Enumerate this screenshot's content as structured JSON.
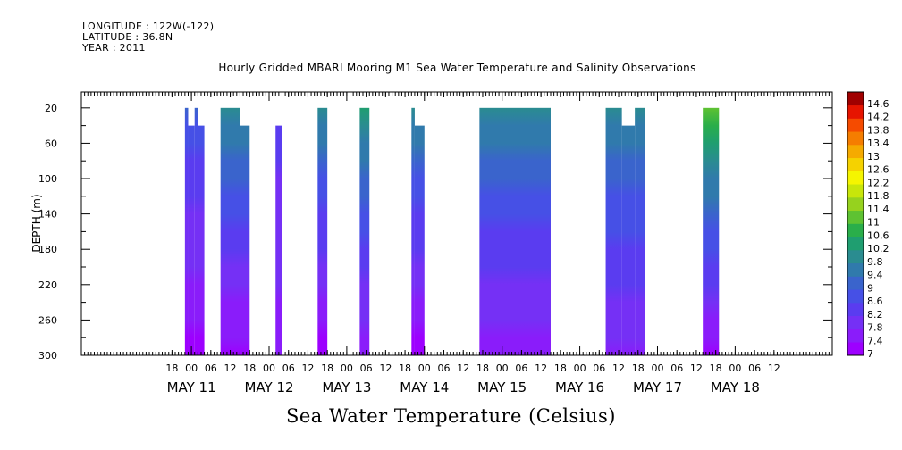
{
  "meta": {
    "longitude": "LONGITUDE : 122W(-122)",
    "latitude": "LATITUDE : 36.8N",
    "year": "YEAR : 2011"
  },
  "chart_data": {
    "type": "heatmap",
    "title": "Hourly Gridded MBARI Mooring M1 Sea Water Temperature and Salinity Observations",
    "xlabel": "Sea Water Temperature (Celsius)",
    "ylabel": "DEPTH (m)",
    "x_unit": "hours since MAY 11 00:00, 2011",
    "xlim": [
      -34,
      198
    ],
    "ylim": [
      300,
      2
    ],
    "y_ticks": [
      20,
      60,
      100,
      140,
      180,
      220,
      260,
      300
    ],
    "hour_tick_labels": [
      "18",
      "00",
      "06",
      "12",
      "18",
      "00",
      "06",
      "12",
      "18",
      "00",
      "06",
      "12",
      "18",
      "00",
      "06",
      "12",
      "18",
      "00",
      "06",
      "12",
      "18",
      "00",
      "06",
      "12",
      "18",
      "00",
      "06",
      "12",
      "18",
      "00",
      "06",
      "12"
    ],
    "hour_tick_values": [
      -6,
      0,
      6,
      12,
      18,
      24,
      30,
      36,
      42,
      48,
      54,
      60,
      66,
      72,
      78,
      84,
      90,
      96,
      102,
      108,
      114,
      120,
      126,
      132,
      138,
      144,
      150,
      156,
      162,
      168,
      174,
      180
    ],
    "day_labels": [
      {
        "text": "MAY 11",
        "hour": 0
      },
      {
        "text": "MAY 12",
        "hour": 24
      },
      {
        "text": "MAY 13",
        "hour": 48
      },
      {
        "text": "MAY 14",
        "hour": 72
      },
      {
        "text": "MAY 15",
        "hour": 96
      },
      {
        "text": "MAY 16",
        "hour": 120
      },
      {
        "text": "MAY 17",
        "hour": 144
      },
      {
        "text": "MAY 18",
        "hour": 168
      }
    ],
    "colorbar": {
      "levels": [
        7,
        7.4,
        7.8,
        8.2,
        8.6,
        9,
        9.4,
        9.8,
        10.2,
        10.6,
        11,
        11.4,
        11.8,
        12.2,
        12.6,
        13,
        13.4,
        13.8,
        14.2,
        14.6
      ],
      "labels": [
        "7",
        "7.4",
        "7.8",
        "8.2",
        "8.6",
        "9",
        "9.4",
        "9.8",
        "10.2",
        "10.6",
        "11",
        "11.4",
        "11.8",
        "12.2",
        "12.6",
        "13",
        "13.4",
        "13.8",
        "14.2",
        "14.6"
      ],
      "colors": [
        "#9d00ff",
        "#8a1cfa",
        "#7530f5",
        "#5a3cf0",
        "#4650e6",
        "#3a64cc",
        "#307aac",
        "#2a8c90",
        "#1f9e70",
        "#2aae4a",
        "#5ec232",
        "#96d21e",
        "#c8e60a",
        "#f5f500",
        "#f5d200",
        "#f5aa00",
        "#f57d00",
        "#f54b00",
        "#e61400",
        "#a00000"
      ]
    },
    "segments": [
      {
        "start": -2,
        "end": 4,
        "top_steps": [
          [
            -2,
            20
          ],
          [
            -1,
            40
          ],
          [
            1,
            20
          ],
          [
            2,
            40
          ]
        ],
        "surface": 9.0,
        "bottom": 7.3
      },
      {
        "start": 9,
        "end": 18,
        "top_steps": [
          [
            9,
            20
          ],
          [
            15,
            40
          ]
        ],
        "surface": 10.0,
        "bottom": 7.3
      },
      {
        "start": 26,
        "end": 28,
        "top_steps": [
          [
            26,
            40
          ]
        ],
        "surface": 8.5,
        "bottom": 7.6
      },
      {
        "start": 39,
        "end": 42,
        "top_steps": [
          [
            39,
            20
          ]
        ],
        "surface": 10.0,
        "bottom": 7.2
      },
      {
        "start": 52,
        "end": 55,
        "top_steps": [
          [
            52,
            20
          ]
        ],
        "surface": 10.4,
        "bottom": 7.5
      },
      {
        "start": 68,
        "end": 72,
        "top_steps": [
          [
            68,
            20
          ],
          [
            69,
            40
          ]
        ],
        "surface": 10.0,
        "bottom": 7.2
      },
      {
        "start": 89,
        "end": 111,
        "top_steps": [
          [
            89,
            20
          ]
        ],
        "surface": 9.9,
        "bottom": 7.6
      },
      {
        "start": 128,
        "end": 140,
        "top_steps": [
          [
            128,
            20
          ],
          [
            133,
            40
          ],
          [
            137,
            20
          ]
        ],
        "surface": 10.0,
        "bottom": 7.7
      },
      {
        "start": 158,
        "end": 163,
        "top_steps": [
          [
            158,
            20
          ]
        ],
        "surface": 11.2,
        "bottom": 7.3
      }
    ]
  }
}
